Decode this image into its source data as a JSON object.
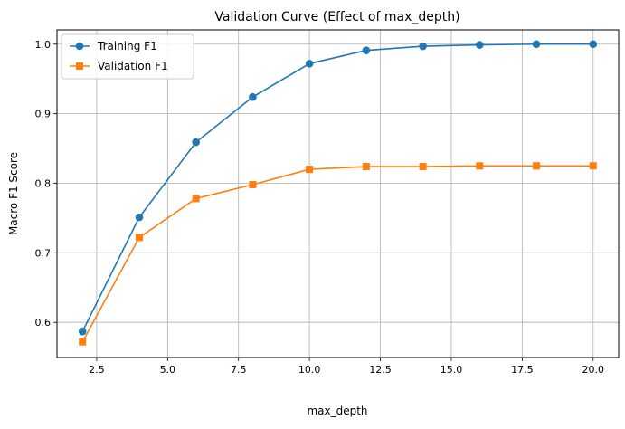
{
  "chart_data": {
    "type": "line",
    "title": "Validation Curve (Effect of max_depth)",
    "xlabel": "max_depth",
    "ylabel": "Macro F1 Score",
    "x": [
      2,
      4,
      6,
      8,
      10,
      12,
      14,
      16,
      18,
      20
    ],
    "xlim": [
      1.1,
      20.9
    ],
    "ylim": [
      0.5495,
      1.0205
    ],
    "xticks": [
      2.5,
      5.0,
      7.5,
      10.0,
      12.5,
      15.0,
      17.5,
      20.0
    ],
    "xtick_labels": [
      "2.5",
      "5.0",
      "7.5",
      "10.0",
      "12.5",
      "15.0",
      "17.5",
      "20.0"
    ],
    "yticks": [
      0.6,
      0.7,
      0.8,
      0.9,
      1.0
    ],
    "ytick_labels": [
      "0.6",
      "0.7",
      "0.8",
      "0.9",
      "1.0"
    ],
    "grid": true,
    "legend_position": "top-left",
    "series": [
      {
        "name": "Training F1",
        "marker": "circle",
        "color": "#1f77b4",
        "values": [
          0.587,
          0.751,
          0.859,
          0.924,
          0.972,
          0.991,
          0.997,
          0.999,
          1.0,
          1.0
        ]
      },
      {
        "name": "Validation F1",
        "marker": "square",
        "color": "#ff7f0e",
        "values": [
          0.572,
          0.722,
          0.778,
          0.798,
          0.82,
          0.824,
          0.824,
          0.825,
          0.825,
          0.825
        ]
      }
    ]
  }
}
